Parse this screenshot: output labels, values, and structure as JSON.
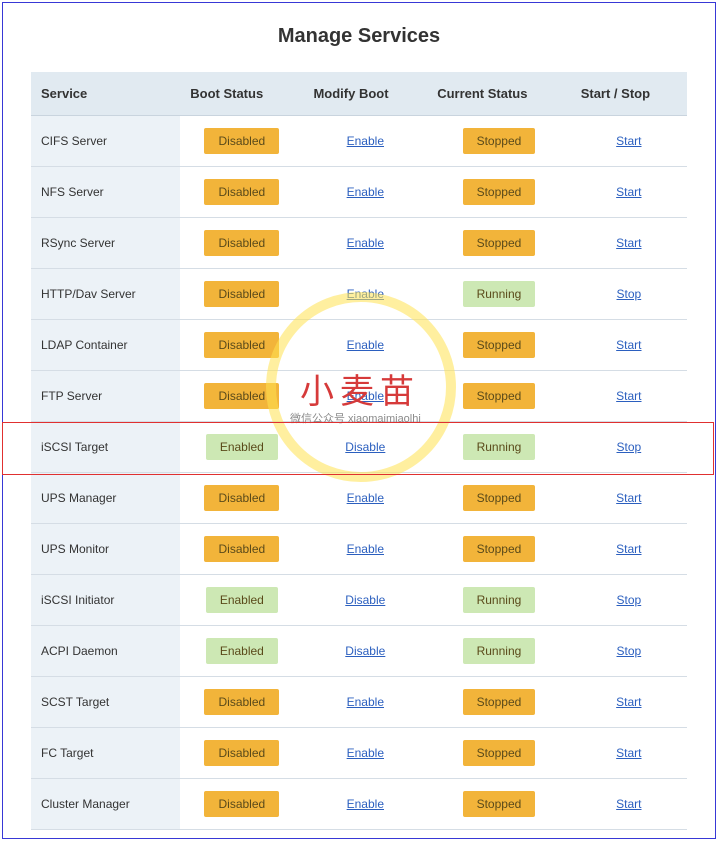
{
  "page_title": "Manage Services",
  "columns": {
    "service": "Service",
    "boot_status": "Boot Status",
    "modify_boot": "Modify Boot",
    "current_status": "Current Status",
    "start_stop": "Start / Stop"
  },
  "status_colors": {
    "Disabled": "#f2b43a",
    "Enabled": "#cde8b4",
    "Stopped": "#f2b43a",
    "Running": "#cde8b4"
  },
  "link_color": "#2b5fbf",
  "header_bg": "#e1eaf1",
  "row_first_col_bg": "#ecf2f7",
  "row_border": "#d5dde5",
  "outer_border": "#3838d6",
  "highlight_color": "#e03030",
  "watermark_text": "小麦苗",
  "watermark_sub": "微信公众号  xiaomaimiaolhi",
  "services": [
    {
      "name": "CIFS Server",
      "boot": "Disabled",
      "modify": "Enable",
      "status": "Stopped",
      "action": "Start",
      "hl": false
    },
    {
      "name": "NFS Server",
      "boot": "Disabled",
      "modify": "Enable",
      "status": "Stopped",
      "action": "Start",
      "hl": false
    },
    {
      "name": "RSync Server",
      "boot": "Disabled",
      "modify": "Enable",
      "status": "Stopped",
      "action": "Start",
      "hl": false
    },
    {
      "name": "HTTP/Dav Server",
      "boot": "Disabled",
      "modify": "Enable",
      "status": "Running",
      "action": "Stop",
      "hl": false
    },
    {
      "name": "LDAP Container",
      "boot": "Disabled",
      "modify": "Enable",
      "status": "Stopped",
      "action": "Start",
      "hl": false
    },
    {
      "name": "FTP Server",
      "boot": "Disabled",
      "modify": "Enable",
      "status": "Stopped",
      "action": "Start",
      "hl": false
    },
    {
      "name": "iSCSI Target",
      "boot": "Enabled",
      "modify": "Disable",
      "status": "Running",
      "action": "Stop",
      "hl": true
    },
    {
      "name": "UPS Manager",
      "boot": "Disabled",
      "modify": "Enable",
      "status": "Stopped",
      "action": "Start",
      "hl": false
    },
    {
      "name": "UPS Monitor",
      "boot": "Disabled",
      "modify": "Enable",
      "status": "Stopped",
      "action": "Start",
      "hl": false
    },
    {
      "name": "iSCSI Initiator",
      "boot": "Enabled",
      "modify": "Disable",
      "status": "Running",
      "action": "Stop",
      "hl": false
    },
    {
      "name": "ACPI Daemon",
      "boot": "Enabled",
      "modify": "Disable",
      "status": "Running",
      "action": "Stop",
      "hl": false
    },
    {
      "name": "SCST Target",
      "boot": "Disabled",
      "modify": "Enable",
      "status": "Stopped",
      "action": "Start",
      "hl": false
    },
    {
      "name": "FC Target",
      "boot": "Disabled",
      "modify": "Enable",
      "status": "Stopped",
      "action": "Start",
      "hl": false
    },
    {
      "name": "Cluster Manager",
      "boot": "Disabled",
      "modify": "Enable",
      "status": "Stopped",
      "action": "Start",
      "hl": false
    }
  ]
}
